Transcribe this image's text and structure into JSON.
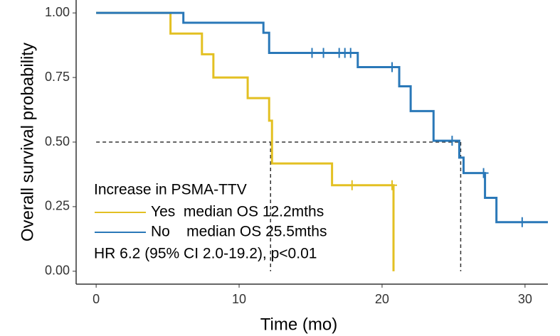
{
  "chart_data": {
    "type": "survival",
    "x_label": "Time (mo)",
    "y_label": "Overall survival probability",
    "legend_title": "Increase in PSMA-TTV",
    "annotation": "HR 6.2 (95% CI 2.0-19.2), p<0.01",
    "xlim": [
      -1.4,
      31.6
    ],
    "ylim": [
      -0.05,
      1.05
    ],
    "xticks": [
      0,
      10,
      20,
      30
    ],
    "yticks": [
      {
        "value": 0,
        "label": "0.00"
      },
      {
        "value": 0.25,
        "label": "0.25"
      },
      {
        "value": 0.5,
        "label": "0.50"
      },
      {
        "value": 0.75,
        "label": "0.75"
      },
      {
        "value": 1,
        "label": "1.00"
      }
    ],
    "median_lines": {
      "y": 0.5,
      "x": [
        12.2,
        25.5
      ]
    },
    "series": [
      {
        "name": "Yes  median OS 12.2mths",
        "color": "#e3c022",
        "x": [
          0,
          5.2,
          7.4,
          8.2,
          10.6,
          12.1,
          12.3,
          16.5,
          20.8
        ],
        "values": [
          1,
          0.92,
          0.84,
          0.75,
          0.67,
          0.583,
          0.417,
          0.333,
          0
        ],
        "censored": {
          "x": [
            17.9,
            20.7
          ],
          "values": [
            0.333,
            0.333
          ]
        }
      },
      {
        "name": "No    median OS 25.5mths",
        "color": "#2a78b8",
        "x": [
          0,
          6.1,
          11.7,
          12.1,
          18.3,
          21.2,
          22.0,
          23.6,
          25.4,
          25.7,
          27.2,
          28.0,
          31.6
        ],
        "values": [
          1,
          0.962,
          0.923,
          0.845,
          0.79,
          0.716,
          0.62,
          0.505,
          0.44,
          0.38,
          0.284,
          0.19,
          0.19
        ],
        "censored": {
          "x": [
            15.1,
            15.9,
            17.0,
            17.4,
            17.8,
            20.7,
            24.9,
            27.1,
            29.8
          ],
          "values": [
            0.845,
            0.845,
            0.845,
            0.845,
            0.845,
            0.79,
            0.505,
            0.38,
            0.19
          ]
        }
      }
    ]
  }
}
